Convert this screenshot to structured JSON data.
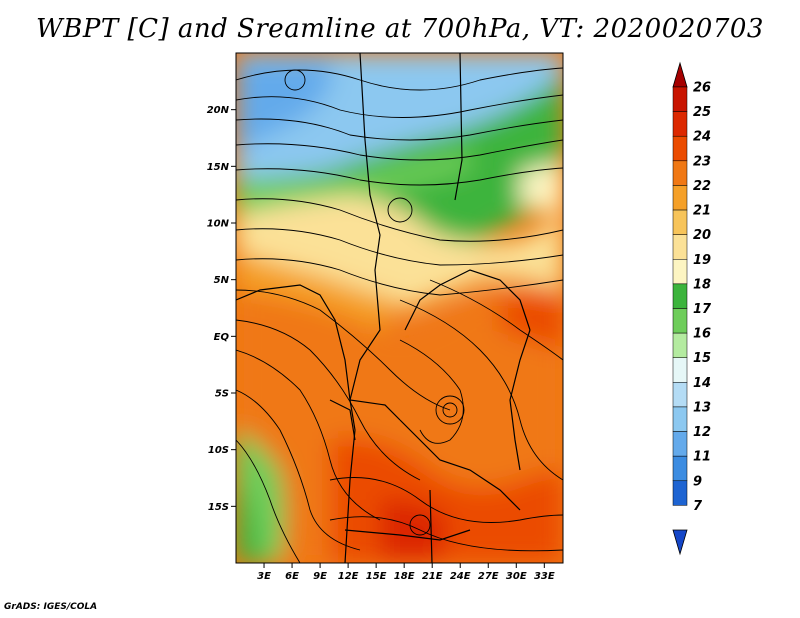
{
  "title": "WBPT [C] and Sreamline at 700hPa, VT: 2020020703",
  "footer": "GrADS: IGES/COLA",
  "map": {
    "lat_labels": [
      "20N",
      "15N",
      "10N",
      "5N",
      "EQ",
      "5S",
      "10S",
      "15S"
    ],
    "lat_values": [
      20,
      15,
      10,
      5,
      0,
      -5,
      -10,
      -15
    ],
    "lon_labels": [
      "3E",
      "6E",
      "9E",
      "12E",
      "15E",
      "18E",
      "21E",
      "24E",
      "27E",
      "30E",
      "33E"
    ],
    "lon_values": [
      3,
      6,
      9,
      12,
      15,
      18,
      21,
      24,
      27,
      30,
      33
    ],
    "lon_range": [
      0,
      35
    ],
    "lat_range": [
      -20,
      25
    ]
  },
  "colorbar": {
    "labels": [
      "26",
      "25",
      "24",
      "23",
      "22",
      "21",
      "20",
      "19",
      "18",
      "17",
      "16",
      "15",
      "14",
      "13",
      "12",
      "11",
      "9",
      "7"
    ],
    "colors": [
      "#a50000",
      "#c81400",
      "#dc2800",
      "#eb4b00",
      "#f07814",
      "#f5a028",
      "#f7c45a",
      "#fbe197",
      "#fdf5c2",
      "#3cb43c",
      "#6ecd5a",
      "#b4eba0",
      "#e6f7f7",
      "#b4dcf5",
      "#8cc8f0",
      "#64aaeb",
      "#3c8ce1",
      "#1e64d2",
      "#1446c8"
    ]
  }
}
